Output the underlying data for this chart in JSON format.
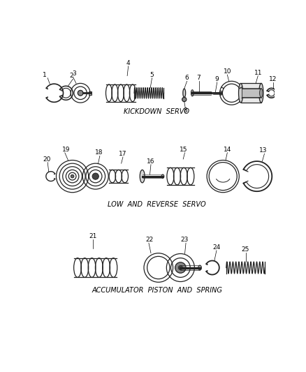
{
  "background_color": "#ffffff",
  "line_color": "#222222",
  "section1_label": "KICKDOWN  SERVO",
  "section2_label": "LOW  AND  REVERSE  SERVO",
  "section3_label": "ACCUMULATOR  PISTON  AND  SPRING",
  "label_fontsize": 7.0,
  "number_fontsize": 6.5
}
